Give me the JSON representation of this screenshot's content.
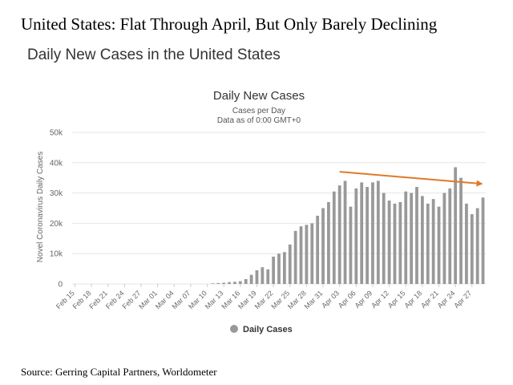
{
  "page": {
    "headline": "United States: Flat Through April, But Only Barely Declining",
    "subheading": "Daily New Cases in the United States",
    "source": "Source: Gerring Capital Partners, Worldometer"
  },
  "colors": {
    "bar": "#999999",
    "trend": "#e07a26",
    "grid": "#e6e6e6",
    "text": "#333333",
    "axis_text": "#666666"
  },
  "chart_data": {
    "type": "bar",
    "title": "Daily New Cases",
    "subtitle_lines": [
      "Cases per Day",
      "Data as of 0:00 GMT+0"
    ],
    "xlabel": "",
    "ylabel": "Novel Coronavirus Daily Cases",
    "ylim": [
      0,
      50000
    ],
    "yticks": [
      0,
      10000,
      20000,
      30000,
      40000,
      50000
    ],
    "ytick_labels": [
      "0",
      "10k",
      "20k",
      "30k",
      "40k",
      "50k"
    ],
    "grid": true,
    "legend": {
      "position": "bottom-center",
      "entries": [
        "Daily Cases"
      ]
    },
    "x_tick_labels": [
      "Feb 15",
      "Feb 18",
      "Feb 21",
      "Feb 24",
      "Feb 27",
      "Mar 01",
      "Mar 04",
      "Mar 07",
      "Mar 10",
      "Mar 13",
      "Mar 16",
      "Mar 19",
      "Mar 22",
      "Mar 25",
      "Mar 28",
      "Mar 31",
      "Apr 03",
      "Apr 06",
      "Apr 09",
      "Apr 12",
      "Apr 15",
      "Apr 18",
      "Apr 21",
      "Apr 24",
      "Apr 27"
    ],
    "categories": [
      "Feb 15",
      "Feb 16",
      "Feb 17",
      "Feb 18",
      "Feb 19",
      "Feb 20",
      "Feb 21",
      "Feb 22",
      "Feb 23",
      "Feb 24",
      "Feb 25",
      "Feb 26",
      "Feb 27",
      "Feb 28",
      "Feb 29",
      "Mar 01",
      "Mar 02",
      "Mar 03",
      "Mar 04",
      "Mar 05",
      "Mar 06",
      "Mar 07",
      "Mar 08",
      "Mar 09",
      "Mar 10",
      "Mar 11",
      "Mar 12",
      "Mar 13",
      "Mar 14",
      "Mar 15",
      "Mar 16",
      "Mar 17",
      "Mar 18",
      "Mar 19",
      "Mar 20",
      "Mar 21",
      "Mar 22",
      "Mar 23",
      "Mar 24",
      "Mar 25",
      "Mar 26",
      "Mar 27",
      "Mar 28",
      "Mar 29",
      "Mar 30",
      "Mar 31",
      "Apr 01",
      "Apr 02",
      "Apr 03",
      "Apr 04",
      "Apr 05",
      "Apr 06",
      "Apr 07",
      "Apr 08",
      "Apr 09",
      "Apr 10",
      "Apr 11",
      "Apr 12",
      "Apr 13",
      "Apr 14",
      "Apr 15",
      "Apr 16",
      "Apr 17",
      "Apr 18",
      "Apr 19",
      "Apr 20",
      "Apr 21",
      "Apr 22",
      "Apr 23",
      "Apr 24",
      "Apr 25",
      "Apr 26",
      "Apr 27",
      "Apr 28",
      "Apr 29"
    ],
    "series": [
      {
        "name": "Daily Cases",
        "values": [
          0,
          0,
          0,
          0,
          0,
          0,
          0,
          0,
          0,
          0,
          0,
          0,
          0,
          0,
          0,
          0,
          0,
          0,
          0,
          0,
          0,
          0,
          0,
          0,
          0,
          200,
          300,
          400,
          600,
          700,
          900,
          1600,
          3000,
          4500,
          5500,
          4800,
          9000,
          10000,
          10500,
          13000,
          17500,
          19000,
          19500,
          20000,
          22500,
          25000,
          27000,
          30500,
          32500,
          34000,
          25500,
          31500,
          33500,
          32000,
          33500,
          34000,
          30000,
          27500,
          26500,
          27000,
          30500,
          30000,
          32000,
          29000,
          26500,
          28000,
          25500,
          30000,
          31500,
          38500,
          35000,
          26500,
          23000,
          25000,
          28500
        ]
      }
    ],
    "trend_line": {
      "start": [
        "Apr 03",
        37000
      ],
      "end": [
        "Apr 29",
        33000
      ]
    }
  }
}
